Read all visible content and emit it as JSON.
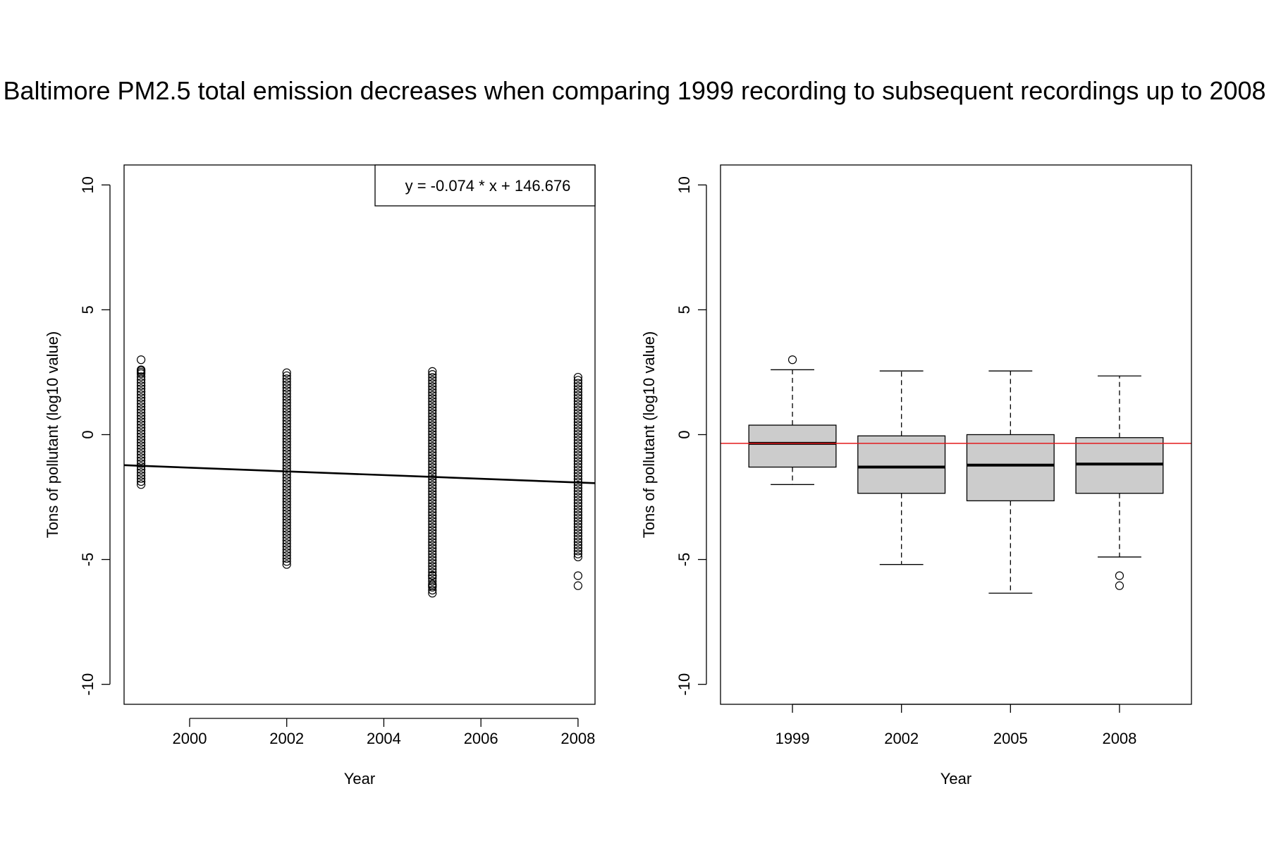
{
  "figure": {
    "title": "Baltimore PM2.5 total emission decreases when comparing 1999 recording to subsequent recordings up to 2008"
  },
  "chart_data": [
    {
      "type": "scatter",
      "title": "",
      "xlabel": "Year",
      "ylabel": "Tons of pollutant (log10 value)",
      "xlim": [
        1998.65,
        2008.35
      ],
      "ylim": [
        -10.8,
        10.8
      ],
      "xticks": [
        2000,
        2002,
        2004,
        2006,
        2008
      ],
      "yticks": [
        -10,
        -5,
        0,
        5,
        10
      ],
      "legend": {
        "placement": "top-right",
        "text": "y = -0.074 * x + 146.676"
      },
      "regression_line": {
        "slope": -0.074,
        "intercept": 146.676
      },
      "groups": [
        {
          "x": 1999,
          "upper_outliers": [
            3.0,
            2.6,
            2.5
          ],
          "range": [
            -2.0,
            2.6
          ]
        },
        {
          "x": 2002,
          "range": [
            -5.2,
            2.55
          ]
        },
        {
          "x": 2005,
          "range": [
            -6.35,
            2.55
          ],
          "lower_outliers": [
            -6.05,
            -5.65
          ]
        },
        {
          "x": 2008,
          "range": [
            -4.9,
            2.35
          ],
          "lower_outliers": [
            -5.65,
            -6.05
          ]
        }
      ],
      "grid": false
    },
    {
      "type": "box",
      "title": "",
      "xlabel": "Year",
      "ylabel": "Tons of pollutant (log10 value)",
      "ylim": [
        -10.8,
        10.8
      ],
      "yticks": [
        -10,
        -5,
        0,
        5,
        10
      ],
      "categories": [
        "1999",
        "2002",
        "2005",
        "2008"
      ],
      "boxes": [
        {
          "category": "1999",
          "whisker_low": -2.0,
          "q1": -1.3,
          "median": -0.35,
          "q3": 0.38,
          "whisker_high": 2.6,
          "outliers": [
            3.0
          ]
        },
        {
          "category": "2002",
          "whisker_low": -5.2,
          "q1": -2.35,
          "median": -1.3,
          "q3": -0.05,
          "whisker_high": 2.55,
          "outliers": []
        },
        {
          "category": "2005",
          "whisker_low": -6.35,
          "q1": -2.65,
          "median": -1.22,
          "q3": 0.0,
          "whisker_high": 2.55,
          "outliers": []
        },
        {
          "category": "2008",
          "whisker_low": -4.9,
          "q1": -2.35,
          "median": -1.18,
          "q3": -0.12,
          "whisker_high": 2.35,
          "outliers": [
            -5.65,
            -6.05
          ]
        }
      ],
      "reference_line": {
        "y": -0.35,
        "color": "#e31a1c"
      },
      "box_fill": "#cccccc",
      "grid": false
    }
  ]
}
